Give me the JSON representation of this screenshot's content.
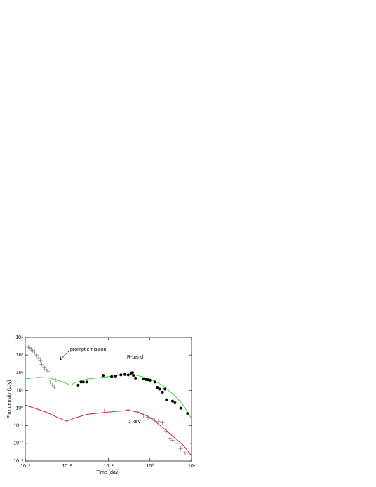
{
  "chart_data": {
    "type": "line",
    "x_label": "Time (day)",
    "y_label": "Flux density (μJy)",
    "log_x": true,
    "log_y": true,
    "xlim": [
      0.001,
      10
    ],
    "xticks": [
      {
        "value": 0.001,
        "label": "10⁻³"
      },
      {
        "value": 0.01,
        "label": "10⁻²"
      },
      {
        "value": 0.1,
        "label": "10⁻¹"
      },
      {
        "value": 1,
        "label": "10⁰"
      },
      {
        "value": 10,
        "label": "10¹"
      }
    ],
    "ylim": [
      0.001,
      10000
    ],
    "yticks": [
      {
        "value": 0.001,
        "label": "10⁻³"
      },
      {
        "value": 0.01,
        "label": "10⁻²"
      },
      {
        "value": 0.1,
        "label": "10⁻¹"
      },
      {
        "value": 1,
        "label": "10⁰"
      },
      {
        "value": 10,
        "label": "10¹"
      },
      {
        "value": 100,
        "label": "10²"
      },
      {
        "value": 1000,
        "label": "10³"
      },
      {
        "value": 10000,
        "label": "10⁴"
      }
    ],
    "annotations": [
      "prompt emission",
      "R-band",
      "1 keV"
    ],
    "series": [
      {
        "style": "curve",
        "color": "#33dd33",
        "x": [
          0.001,
          0.002,
          0.004,
          0.008,
          0.0126,
          0.0158,
          0.0316,
          0.1,
          0.2,
          0.316,
          0.5,
          1,
          2,
          4,
          6.3,
          10
        ],
        "values": [
          45,
          55,
          50,
          30,
          20,
          28,
          45,
          60,
          75,
          82,
          70,
          45,
          20,
          5,
          1.5,
          0.25
        ]
      },
      {
        "style": "curve",
        "color": "#dd2222",
        "x": [
          0.001,
          0.00316,
          0.0063,
          0.01,
          0.0158,
          0.0316,
          0.1,
          0.316,
          0.5,
          1,
          2,
          4,
          6.3,
          10
        ],
        "values": [
          1.5,
          0.6,
          0.28,
          0.18,
          0.28,
          0.45,
          0.6,
          0.75,
          0.6,
          0.3,
          0.08,
          0.02,
          0.008,
          0.002
        ]
      },
      {
        "style": "dot",
        "color": "#000000",
        "x": [
          0.0187,
          0.022,
          0.025,
          0.03,
          0.075,
          0.12,
          0.15,
          0.2,
          0.25,
          0.3,
          0.35,
          0.38,
          0.4,
          0.45,
          0.7,
          0.8,
          0.9,
          1.0,
          1.3,
          1.5,
          1.7,
          2,
          2.3,
          2.5,
          3.5,
          4,
          5.5,
          8
        ],
        "values": [
          20,
          30,
          30,
          30,
          70,
          60,
          65,
          75,
          80,
          75,
          95,
          100,
          70,
          50,
          45,
          42,
          40,
          38,
          30,
          15,
          12,
          8,
          12,
          3,
          2.5,
          2,
          1,
          0.5
        ]
      },
      {
        "style": "cross",
        "color": "#777777",
        "x": [
          0.08,
          0.3,
          0.5,
          0.7,
          0.9,
          1.1,
          1.3,
          1.6,
          2,
          2.5,
          3,
          3.5,
          4.5,
          5.5,
          7
        ],
        "values": [
          0.7,
          0.8,
          0.6,
          0.4,
          0.3,
          0.25,
          0.2,
          0.18,
          0.15,
          0.05,
          0.02,
          0.015,
          0.01,
          0.005,
          0.003
        ]
      },
      {
        "style": "cross",
        "color": "#777777",
        "x": [
          0.0011,
          0.0012,
          0.0013,
          0.0014,
          0.0015,
          0.0017,
          0.0019,
          0.0021,
          0.0023,
          0.0025,
          0.0027,
          0.0029,
          0.0032,
          0.0035,
          0.004,
          0.0045,
          0.005,
          0.0055
        ],
        "values": [
          3000,
          2800,
          2500,
          2200,
          1800,
          1500,
          1000,
          700,
          500,
          300,
          250,
          200,
          150,
          120,
          30,
          20,
          15,
          40
        ]
      }
    ]
  }
}
